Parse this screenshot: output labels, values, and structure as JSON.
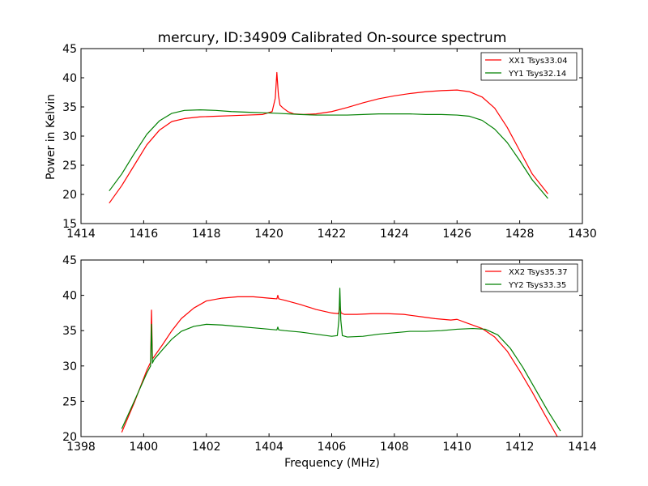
{
  "chart_data": [
    {
      "type": "line",
      "title": "mercury, ID:34909 Calibrated On-source spectrum",
      "xlabel": "",
      "ylabel": "Power in Kelvin",
      "xlim": [
        1414,
        1430
      ],
      "ylim": [
        15,
        45
      ],
      "xticks": [
        1414,
        1416,
        1418,
        1420,
        1422,
        1424,
        1426,
        1428,
        1430
      ],
      "yticks": [
        15,
        20,
        25,
        30,
        35,
        40,
        45
      ],
      "legend_position": "top-right",
      "series": [
        {
          "name": "XX1 Tsys33.04",
          "color": "#ff0000",
          "x": [
            1414.9,
            1415.3,
            1415.7,
            1416.1,
            1416.5,
            1416.9,
            1417.3,
            1417.8,
            1418.3,
            1418.8,
            1419.3,
            1419.8,
            1420.1,
            1420.2,
            1420.25,
            1420.3,
            1420.35,
            1420.45,
            1420.6,
            1420.8,
            1421.1,
            1421.5,
            1422.0,
            1422.5,
            1423.0,
            1423.5,
            1424.0,
            1424.5,
            1425.0,
            1425.5,
            1426.0,
            1426.4,
            1426.8,
            1427.2,
            1427.6,
            1428.0,
            1428.4,
            1428.9
          ],
          "y": [
            18.5,
            21.5,
            25.0,
            28.5,
            31.0,
            32.5,
            33.0,
            33.3,
            33.4,
            33.5,
            33.6,
            33.7,
            34.2,
            36.5,
            40.9,
            37.0,
            35.3,
            34.8,
            34.2,
            33.8,
            33.7,
            33.8,
            34.2,
            34.9,
            35.7,
            36.4,
            36.9,
            37.3,
            37.6,
            37.8,
            37.9,
            37.6,
            36.7,
            34.8,
            31.5,
            27.5,
            23.5,
            20.1
          ]
        },
        {
          "name": "YY1 Tsys32.14",
          "color": "#008000",
          "x": [
            1414.9,
            1415.3,
            1415.7,
            1416.1,
            1416.5,
            1416.9,
            1417.3,
            1417.8,
            1418.3,
            1418.8,
            1419.3,
            1419.8,
            1420.3,
            1421.0,
            1421.5,
            1422.0,
            1422.5,
            1423.0,
            1423.5,
            1424.0,
            1424.5,
            1425.0,
            1425.5,
            1426.0,
            1426.4,
            1426.8,
            1427.2,
            1427.6,
            1428.0,
            1428.4,
            1428.9
          ],
          "y": [
            20.6,
            23.5,
            27.0,
            30.3,
            32.6,
            33.9,
            34.4,
            34.5,
            34.4,
            34.2,
            34.1,
            34.0,
            33.9,
            33.7,
            33.6,
            33.6,
            33.6,
            33.7,
            33.8,
            33.8,
            33.8,
            33.7,
            33.7,
            33.6,
            33.4,
            32.7,
            31.2,
            28.9,
            25.8,
            22.5,
            19.3
          ]
        }
      ]
    },
    {
      "type": "line",
      "title": "",
      "xlabel": "Frequency (MHz)",
      "ylabel": "",
      "xlim": [
        1398,
        1414
      ],
      "ylim": [
        20,
        45
      ],
      "xticks": [
        1398,
        1400,
        1402,
        1404,
        1406,
        1408,
        1410,
        1412,
        1414
      ],
      "yticks": [
        20,
        25,
        30,
        35,
        40,
        45
      ],
      "legend_position": "top-right",
      "series": [
        {
          "name": "XX2 Tsys35.37",
          "color": "#ff0000",
          "x": [
            1399.3,
            1399.7,
            1400.1,
            1400.22,
            1400.25,
            1400.28,
            1400.33,
            1400.6,
            1400.9,
            1401.2,
            1401.6,
            1402.0,
            1402.5,
            1403.0,
            1403.5,
            1404.0,
            1404.25,
            1404.28,
            1404.31,
            1404.5,
            1405.0,
            1405.5,
            1406.0,
            1406.22,
            1406.26,
            1406.3,
            1406.4,
            1406.8,
            1407.3,
            1407.8,
            1408.3,
            1408.8,
            1409.3,
            1409.8,
            1410.0,
            1410.3,
            1410.8,
            1411.2,
            1411.6,
            1412.0,
            1412.4,
            1412.8,
            1413.2
          ],
          "y": [
            20.6,
            24.8,
            29.4,
            30.5,
            37.9,
            31.0,
            31.3,
            33.0,
            35.0,
            36.7,
            38.2,
            39.2,
            39.6,
            39.8,
            39.8,
            39.6,
            39.5,
            40.0,
            39.5,
            39.3,
            38.7,
            38.0,
            37.5,
            37.4,
            38.4,
            37.5,
            37.3,
            37.3,
            37.4,
            37.4,
            37.3,
            37.0,
            36.7,
            36.5,
            36.6,
            36.1,
            35.3,
            34.1,
            32.1,
            29.3,
            26.3,
            23.1,
            20.0
          ]
        },
        {
          "name": "YY2 Tsys33.35",
          "color": "#008000",
          "x": [
            1399.3,
            1399.7,
            1400.1,
            1400.22,
            1400.25,
            1400.28,
            1400.33,
            1400.6,
            1400.9,
            1401.2,
            1401.6,
            1402.0,
            1402.5,
            1403.0,
            1403.5,
            1404.0,
            1404.25,
            1404.28,
            1404.31,
            1404.5,
            1405.0,
            1405.5,
            1406.0,
            1406.18,
            1406.23,
            1406.26,
            1406.29,
            1406.34,
            1406.5,
            1407.0,
            1407.5,
            1408.0,
            1408.5,
            1409.0,
            1409.5,
            1410.0,
            1410.5,
            1410.9,
            1411.3,
            1411.7,
            1412.1,
            1412.5,
            1412.9,
            1413.3
          ],
          "y": [
            21.1,
            25.0,
            29.0,
            30.0,
            35.9,
            30.4,
            30.9,
            32.3,
            33.8,
            34.9,
            35.6,
            35.9,
            35.8,
            35.6,
            35.4,
            35.2,
            35.1,
            35.5,
            35.1,
            35.0,
            34.8,
            34.5,
            34.2,
            34.3,
            36.5,
            41.0,
            36.5,
            34.3,
            34.1,
            34.2,
            34.5,
            34.7,
            34.9,
            34.9,
            35.0,
            35.2,
            35.3,
            35.2,
            34.4,
            32.5,
            29.8,
            26.7,
            23.6,
            20.8
          ]
        }
      ]
    }
  ]
}
